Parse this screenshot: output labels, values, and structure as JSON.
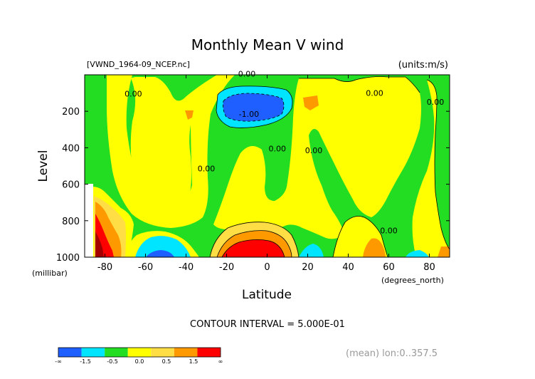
{
  "chart_data": {
    "type": "heatmap",
    "title": "Monthly Mean V wind",
    "file_label": "[VWND_1964-09_NCEP.nc]",
    "units_label": "(units:m/s)",
    "xlabel": "Latitude",
    "x_units": "(degrees_north)",
    "ylabel": "Level",
    "y_units": "(millibar)",
    "xlim": [
      -90,
      90
    ],
    "ylim": [
      1000,
      0
    ],
    "x_ticks": [
      -80,
      -60,
      -40,
      -20,
      0,
      20,
      40,
      60,
      80
    ],
    "y_ticks": [
      200,
      400,
      600,
      800,
      1000
    ],
    "contour_interval": "CONTOUR INTERVAL = 5.000E-01",
    "footnote": "(mean) lon:0..357.5",
    "colorbar": {
      "labels": [
        "-∞",
        "-1.5",
        "-0.5",
        "0.0",
        "0.5",
        "1.5",
        "∞"
      ],
      "colors": [
        "#1f5fff",
        "#00e5ff",
        "#22dd22",
        "#ffff00",
        "#ffdd44",
        "#ff9900",
        "#ff0000"
      ]
    },
    "contour_labels": [
      {
        "text": "0.00",
        "lat": -66,
        "level": 120
      },
      {
        "text": "0.00",
        "lat": -30,
        "level": 530
      },
      {
        "text": "0.00",
        "lat": -10,
        "level": 10
      },
      {
        "text": "-1.00",
        "lat": -9,
        "level": 230
      },
      {
        "text": "0.00",
        "lat": 5,
        "level": 420
      },
      {
        "text": "0.00",
        "lat": 23,
        "level": 430
      },
      {
        "text": "0.00",
        "lat": 53,
        "level": 115
      },
      {
        "text": "0.00",
        "lat": 83,
        "level": 165
      },
      {
        "text": "0.00",
        "lat": 60,
        "level": 870
      }
    ]
  }
}
